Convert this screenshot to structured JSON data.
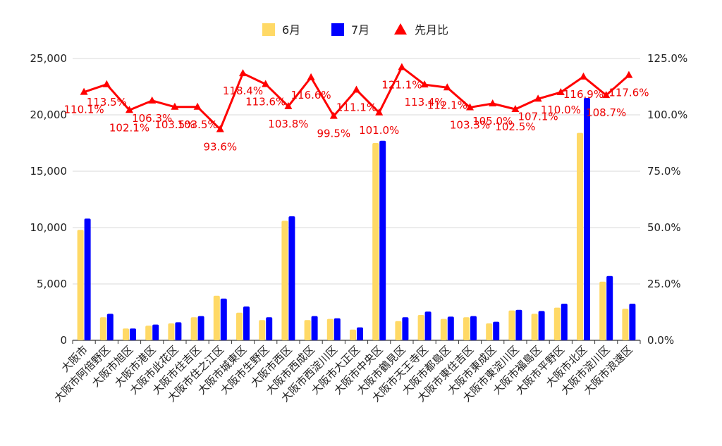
{
  "chart_data": {
    "type": "bar",
    "categories": [
      "大阪市",
      "大阪市阿倍野区",
      "大阪市旭区",
      "大阪市港区",
      "大阪市此花区",
      "大阪市住吉区",
      "大阪市住之江区",
      "大阪市城東区",
      "大阪市生野区",
      "大阪市西区",
      "大阪市西成区",
      "大阪市西淀川区",
      "大阪市大正区",
      "大阪市中央区",
      "大阪市鶴見区",
      "大阪市天王寺区",
      "大阪市都島区",
      "大阪市東住吉区",
      "大阪市東成区",
      "大阪市東淀川区",
      "大阪市福島区",
      "大阪市平野区",
      "大阪市北区",
      "大阪市淀川区",
      "大阪市浪速区"
    ],
    "series": [
      {
        "name": "6月",
        "type": "bar",
        "axis": "left",
        "color": "#FFD966",
        "values": [
          9800,
          2050,
          1050,
          1300,
          1500,
          2050,
          3950,
          2450,
          1800,
          10600,
          1800,
          1900,
          950,
          17500,
          1700,
          2250,
          1900,
          2050,
          1500,
          2650,
          2350,
          2900,
          18400,
          5200,
          2800
        ]
      },
      {
        "name": "7月",
        "type": "bar",
        "axis": "left",
        "color": "#0000FF",
        "values": [
          10800,
          2350,
          1050,
          1400,
          1600,
          2150,
          3700,
          3000,
          2050,
          11000,
          2150,
          1950,
          1150,
          17700,
          2050,
          2550,
          2100,
          2150,
          1650,
          2700,
          2600,
          3250,
          21500,
          5700,
          3250
        ]
      },
      {
        "name": "先月比",
        "type": "line",
        "axis": "right",
        "color": "#FF0000",
        "values": [
          110.1,
          113.5,
          102.1,
          106.3,
          103.5,
          103.5,
          93.6,
          118.4,
          113.6,
          103.8,
          116.6,
          99.5,
          111.1,
          101.0,
          121.1,
          113.4,
          112.1,
          103.3,
          105.0,
          102.5,
          107.1,
          110.0,
          116.9,
          108.7,
          117.6
        ]
      }
    ],
    "data_labels": [
      "110.1%",
      "113.5%",
      "102.1%",
      "106.3%",
      "103.5%",
      "103.5%",
      "93.6%",
      "118.4%",
      "113.6%",
      "103.8%",
      "116.6%",
      "99.5%",
      "111.1%",
      "101.0%",
      "121.1%",
      "113.4%",
      "112.1%",
      "103.3%",
      "105.0%",
      "102.5%",
      "107.1%",
      "110.0%",
      "116.9%",
      "108.7%",
      "117.6%"
    ],
    "y_left": {
      "min": 0,
      "max": 25000,
      "ticks": [
        "0",
        "5,000",
        "10,000",
        "15,000",
        "20,000",
        "25,000"
      ]
    },
    "y_right": {
      "min": 0,
      "max": 125,
      "ticks": [
        "0.0%",
        "25.0%",
        "50.0%",
        "75.0%",
        "100.0%",
        "125.0%"
      ]
    },
    "legend": {
      "position": "top",
      "items": [
        "6月",
        "7月",
        "先月比"
      ]
    },
    "grid": true
  }
}
